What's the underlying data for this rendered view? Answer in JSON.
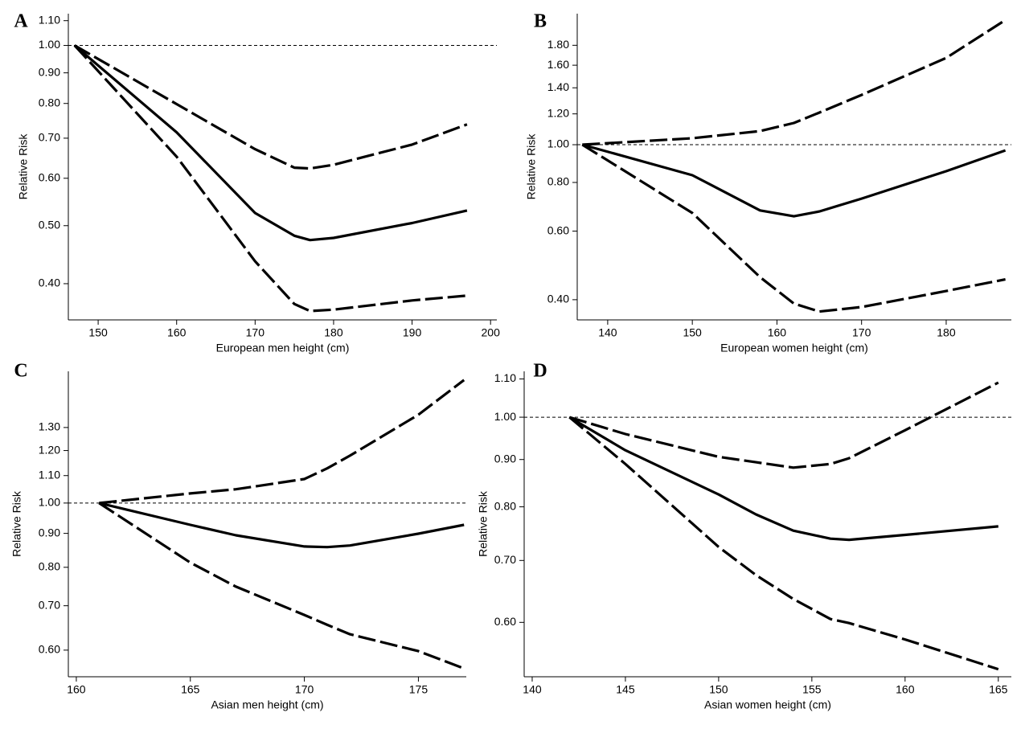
{
  "chart_data": [
    {
      "type": "line",
      "label": "A",
      "xlabel": "European men height (cm)",
      "ylabel": "Relative Risk",
      "ylog": true,
      "reference_line": 1,
      "xlim": [
        146.2,
        200.8
      ],
      "xticks": [
        150,
        160,
        170,
        180,
        190,
        200
      ],
      "ylim": [
        0.348,
        1.13
      ],
      "yticks": [
        {
          "value": 0.4,
          "label": "0.40"
        },
        {
          "value": 0.5,
          "label": "0.50"
        },
        {
          "value": 0.6,
          "label": "0.60"
        },
        {
          "value": 0.7,
          "label": "0.70"
        },
        {
          "value": 0.8,
          "label": "0.80"
        },
        {
          "value": 0.9,
          "label": "0.90"
        },
        {
          "value": 1,
          "label": "1.00"
        },
        {
          "value": 1.1,
          "label": "1.10"
        }
      ],
      "x": [
        147,
        160,
        170,
        175,
        177,
        180,
        190,
        197
      ],
      "series": [
        {
          "color": "#000000",
          "dashed": true,
          "values": [
            1,
            0.798,
            0.671,
            0.625,
            0.623,
            0.632,
            0.683,
            0.738
          ]
        },
        {
          "color": "#000000",
          "dashed": false,
          "values": [
            1,
            0.716,
            0.525,
            0.481,
            0.473,
            0.477,
            0.505,
            0.53
          ]
        },
        {
          "color": "#000000",
          "dashed": true,
          "values": [
            1,
            0.652,
            0.436,
            0.37,
            0.36,
            0.362,
            0.375,
            0.382
          ]
        }
      ]
    },
    {
      "type": "line",
      "label": "B",
      "xlabel": "European women height (cm)",
      "ylabel": "Relative Risk",
      "ylog": true,
      "reference_line": 1,
      "xlim": [
        136.4,
        187.7
      ],
      "xticks": [
        140,
        150,
        160,
        170,
        180
      ],
      "ylim": [
        0.355,
        2.17
      ],
      "yticks": [
        {
          "value": 0.4,
          "label": "0.40"
        },
        {
          "value": 0.6,
          "label": "0.60"
        },
        {
          "value": 0.8,
          "label": "0.80"
        },
        {
          "value": 1,
          "label": "1.00"
        },
        {
          "value": 1.2,
          "label": "1.20"
        },
        {
          "value": 1.4,
          "label": "1.40"
        },
        {
          "value": 1.6,
          "label": "1.60"
        },
        {
          "value": 1.8,
          "label": "1.80"
        }
      ],
      "x": [
        137,
        150,
        158,
        162,
        165,
        170,
        180,
        187
      ],
      "series": [
        {
          "color": "#000000",
          "dashed": true,
          "values": [
            1,
            1.039,
            1.084,
            1.137,
            1.209,
            1.342,
            1.67,
            2.09
          ]
        },
        {
          "color": "#000000",
          "dashed": false,
          "values": [
            1,
            0.835,
            0.678,
            0.655,
            0.674,
            0.727,
            0.855,
            0.967
          ]
        },
        {
          "color": "#000000",
          "dashed": true,
          "values": [
            1,
            0.668,
            0.457,
            0.391,
            0.373,
            0.383,
            0.421,
            0.451
          ]
        }
      ]
    },
    {
      "type": "line",
      "label": "C",
      "xlabel": "Asian men height (cm)",
      "ylabel": "Relative Risk",
      "ylog": true,
      "reference_line": 1,
      "xlim": [
        159.65,
        177.1
      ],
      "xticks": [
        160,
        165,
        170,
        175
      ],
      "ylim": [
        0.547,
        1.58
      ],
      "yticks": [
        {
          "value": 0.6,
          "label": "0.60"
        },
        {
          "value": 0.7,
          "label": "0.70"
        },
        {
          "value": 0.8,
          "label": "0.80"
        },
        {
          "value": 0.9,
          "label": "0.90"
        },
        {
          "value": 1,
          "label": "1.00"
        },
        {
          "value": 1.1,
          "label": "1.10"
        },
        {
          "value": 1.2,
          "label": "1.20"
        },
        {
          "value": 1.3,
          "label": "1.30"
        }
      ],
      "x": [
        161,
        165,
        167,
        170,
        171,
        172,
        175,
        177
      ],
      "series": [
        {
          "color": "#000000",
          "dashed": true,
          "values": [
            1,
            1.034,
            1.049,
            1.087,
            1.128,
            1.179,
            1.359,
            1.533
          ]
        },
        {
          "color": "#000000",
          "dashed": false,
          "values": [
            1,
            0.927,
            0.894,
            0.86,
            0.858,
            0.863,
            0.899,
            0.927
          ]
        },
        {
          "color": "#000000",
          "dashed": true,
          "values": [
            1,
            0.813,
            0.748,
            0.678,
            0.655,
            0.634,
            0.598,
            0.563
          ]
        }
      ]
    },
    {
      "type": "line",
      "label": "D",
      "xlabel": "Asian women height (cm)",
      "ylabel": "Relative Risk",
      "ylog": true,
      "reference_line": 1,
      "xlim": [
        139.57,
        165.7
      ],
      "xticks": [
        140,
        145,
        150,
        155,
        160,
        165
      ],
      "ylim": [
        0.524,
        1.121
      ],
      "yticks": [
        {
          "value": 0.6,
          "label": "0.60"
        },
        {
          "value": 0.7,
          "label": "0.70"
        },
        {
          "value": 0.8,
          "label": "0.80"
        },
        {
          "value": 0.9,
          "label": "0.90"
        },
        {
          "value": 1,
          "label": "1.00"
        },
        {
          "value": 1.1,
          "label": "1.10"
        }
      ],
      "x": [
        142,
        145,
        150,
        152,
        154,
        156,
        157,
        160,
        165
      ],
      "series": [
        {
          "color": "#000000",
          "dashed": true,
          "values": [
            1,
            0.959,
            0.906,
            0.894,
            0.882,
            0.89,
            0.903,
            0.968,
            1.09
          ]
        },
        {
          "color": "#000000",
          "dashed": false,
          "values": [
            1,
            0.921,
            0.825,
            0.785,
            0.754,
            0.739,
            0.737,
            0.746,
            0.762
          ]
        },
        {
          "color": "#000000",
          "dashed": true,
          "values": [
            1,
            0.89,
            0.724,
            0.675,
            0.636,
            0.605,
            0.599,
            0.575,
            0.534
          ]
        }
      ]
    }
  ]
}
